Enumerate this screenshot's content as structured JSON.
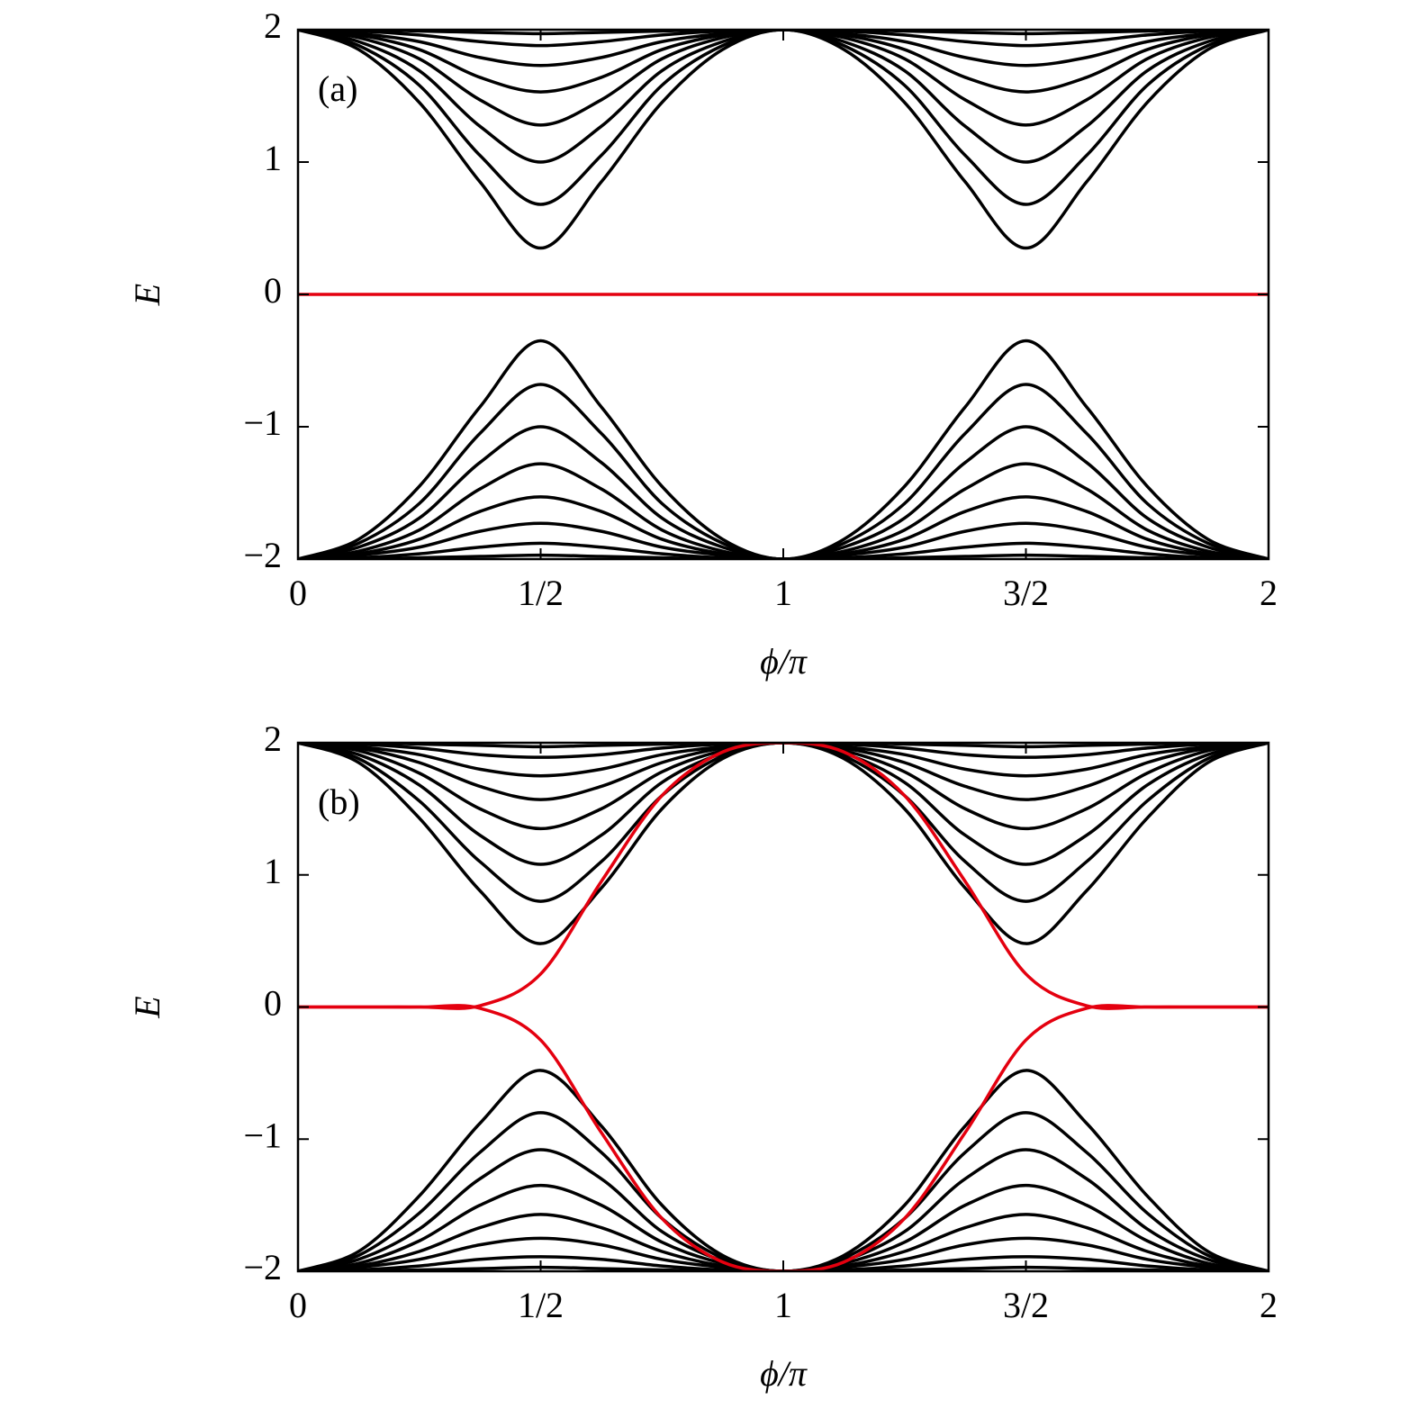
{
  "chart_data": [
    {
      "type": "line",
      "annotation": "(a)",
      "xlabel": "ϕ/π",
      "ylabel": "E",
      "xlim": [
        0,
        2
      ],
      "ylim": [
        -2,
        2
      ],
      "xticks": [
        0,
        {
          "value": 0.5,
          "label": "1/2"
        },
        1,
        {
          "value": 1.5,
          "label": "3/2"
        },
        2
      ],
      "yticks": [
        {
          "value": -2,
          "label": "−2"
        },
        {
          "value": -1,
          "label": "−1"
        },
        0,
        1,
        2
      ],
      "x": [
        0,
        0.125,
        0.25,
        0.375,
        0.5,
        0.625,
        0.75,
        0.875,
        1,
        1.125,
        1.25,
        1.375,
        1.5,
        1.625,
        1.75,
        1.875,
        2
      ],
      "series": [
        {
          "color": "#000000",
          "values": [
            2,
            1.85,
            1.45,
            0.85,
            0.35,
            0.85,
            1.45,
            1.85,
            2,
            1.85,
            1.45,
            0.85,
            0.35,
            0.85,
            1.45,
            1.85,
            2
          ]
        },
        {
          "color": "#000000",
          "values": [
            2,
            1.88,
            1.58,
            1.05,
            0.68,
            1.05,
            1.58,
            1.88,
            2,
            1.88,
            1.58,
            1.05,
            0.68,
            1.05,
            1.58,
            1.88,
            2
          ]
        },
        {
          "color": "#000000",
          "values": [
            2,
            1.91,
            1.69,
            1.27,
            1,
            1.27,
            1.69,
            1.91,
            2,
            1.91,
            1.69,
            1.27,
            1,
            1.27,
            1.69,
            1.91,
            2
          ]
        },
        {
          "color": "#000000",
          "values": [
            2,
            1.94,
            1.78,
            1.47,
            1.28,
            1.47,
            1.78,
            1.94,
            2,
            1.94,
            1.78,
            1.47,
            1.28,
            1.47,
            1.78,
            1.94,
            2
          ]
        },
        {
          "color": "#000000",
          "values": [
            2,
            1.96,
            1.85,
            1.64,
            1.53,
            1.64,
            1.85,
            1.96,
            2,
            1.96,
            1.85,
            1.64,
            1.53,
            1.64,
            1.85,
            1.96,
            2
          ]
        },
        {
          "color": "#000000",
          "values": [
            2,
            1.97,
            1.91,
            1.79,
            1.73,
            1.79,
            1.91,
            1.97,
            2,
            1.97,
            1.91,
            1.79,
            1.73,
            1.79,
            1.91,
            1.97,
            2
          ]
        },
        {
          "color": "#000000",
          "values": [
            2,
            1.99,
            1.96,
            1.91,
            1.88,
            1.91,
            1.96,
            1.99,
            2,
            1.99,
            1.96,
            1.91,
            1.88,
            1.91,
            1.96,
            1.99,
            2
          ]
        },
        {
          "color": "#000000",
          "values": [
            2,
            2,
            1.99,
            1.98,
            1.97,
            1.98,
            1.99,
            2,
            2,
            2,
            1.99,
            1.98,
            1.97,
            1.98,
            1.99,
            2,
            2
          ]
        },
        {
          "color": "#000000",
          "values": [
            -2,
            -1.85,
            -1.45,
            -0.85,
            -0.35,
            -0.85,
            -1.45,
            -1.85,
            -2,
            -1.85,
            -1.45,
            -0.85,
            -0.35,
            -0.85,
            -1.45,
            -1.85,
            -2
          ]
        },
        {
          "color": "#000000",
          "values": [
            -2,
            -1.88,
            -1.58,
            -1.05,
            -0.68,
            -1.05,
            -1.58,
            -1.88,
            -2,
            -1.88,
            -1.58,
            -1.05,
            -0.68,
            -1.05,
            -1.58,
            -1.88,
            -2
          ]
        },
        {
          "color": "#000000",
          "values": [
            -2,
            -1.91,
            -1.69,
            -1.27,
            -1,
            -1.27,
            -1.69,
            -1.91,
            -2,
            -1.91,
            -1.69,
            -1.27,
            -1,
            -1.27,
            -1.69,
            -1.91,
            -2
          ]
        },
        {
          "color": "#000000",
          "values": [
            -2,
            -1.94,
            -1.78,
            -1.47,
            -1.28,
            -1.47,
            -1.78,
            -1.94,
            -2,
            -1.94,
            -1.78,
            -1.47,
            -1.28,
            -1.47,
            -1.78,
            -1.94,
            -2
          ]
        },
        {
          "color": "#000000",
          "values": [
            -2,
            -1.96,
            -1.85,
            -1.64,
            -1.53,
            -1.64,
            -1.85,
            -1.96,
            -2,
            -1.96,
            -1.85,
            -1.64,
            -1.53,
            -1.64,
            -1.85,
            -1.96,
            -2
          ]
        },
        {
          "color": "#000000",
          "values": [
            -2,
            -1.97,
            -1.91,
            -1.79,
            -1.73,
            -1.79,
            -1.91,
            -1.97,
            -2,
            -1.97,
            -1.91,
            -1.79,
            -1.73,
            -1.79,
            -1.91,
            -1.97,
            -2
          ]
        },
        {
          "color": "#000000",
          "values": [
            -2,
            -1.99,
            -1.96,
            -1.91,
            -1.88,
            -1.91,
            -1.96,
            -1.99,
            -2,
            -1.99,
            -1.96,
            -1.91,
            -1.88,
            -1.91,
            -1.96,
            -1.99,
            -2
          ]
        },
        {
          "color": "#000000",
          "values": [
            -2,
            -2,
            -1.99,
            -1.98,
            -1.97,
            -1.98,
            -1.99,
            -2,
            -2,
            -2,
            -1.99,
            -1.98,
            -1.97,
            -1.98,
            -1.99,
            -2,
            -2
          ]
        },
        {
          "color": "#e4000f",
          "values": [
            0,
            0,
            0,
            0,
            0,
            0,
            0,
            0,
            0,
            0,
            0,
            0,
            0,
            0,
            0,
            0,
            0
          ]
        }
      ]
    },
    {
      "type": "line",
      "annotation": "(b)",
      "xlabel": "ϕ/π",
      "ylabel": "E",
      "xlim": [
        0,
        2
      ],
      "ylim": [
        -2,
        2
      ],
      "xticks": [
        0,
        {
          "value": 0.5,
          "label": "1/2"
        },
        1,
        {
          "value": 1.5,
          "label": "3/2"
        },
        2
      ],
      "yticks": [
        {
          "value": -2,
          "label": "−2"
        },
        {
          "value": -1,
          "label": "−1"
        },
        0,
        1,
        2
      ],
      "x": [
        0,
        0.125,
        0.25,
        0.375,
        0.5,
        0.625,
        0.75,
        0.875,
        1,
        1.125,
        1.25,
        1.375,
        1.5,
        1.625,
        1.75,
        1.875,
        2
      ],
      "series": [
        {
          "color": "#000000",
          "values": [
            2,
            1.85,
            1.43,
            0.88,
            0.48,
            0.9,
            1.5,
            1.88,
            2,
            1.88,
            1.5,
            0.9,
            0.48,
            0.88,
            1.43,
            1.85,
            2
          ]
        },
        {
          "color": "#000000",
          "values": [
            2,
            1.88,
            1.56,
            1.1,
            0.8,
            1.1,
            1.6,
            1.9,
            2,
            1.9,
            1.6,
            1.1,
            0.8,
            1.1,
            1.56,
            1.88,
            2
          ]
        },
        {
          "color": "#000000",
          "values": [
            2,
            1.91,
            1.68,
            1.3,
            1.08,
            1.3,
            1.7,
            1.92,
            2,
            1.92,
            1.7,
            1.3,
            1.08,
            1.3,
            1.68,
            1.91,
            2
          ]
        },
        {
          "color": "#000000",
          "values": [
            2,
            1.94,
            1.77,
            1.5,
            1.35,
            1.5,
            1.78,
            1.94,
            2,
            1.94,
            1.78,
            1.5,
            1.35,
            1.5,
            1.77,
            1.94,
            2
          ]
        },
        {
          "color": "#000000",
          "values": [
            2,
            1.96,
            1.85,
            1.67,
            1.57,
            1.67,
            1.85,
            1.96,
            2,
            1.96,
            1.85,
            1.67,
            1.57,
            1.67,
            1.85,
            1.96,
            2
          ]
        },
        {
          "color": "#000000",
          "values": [
            2,
            1.97,
            1.91,
            1.8,
            1.75,
            1.8,
            1.91,
            1.97,
            2,
            1.97,
            1.91,
            1.8,
            1.75,
            1.8,
            1.91,
            1.97,
            2
          ]
        },
        {
          "color": "#000000",
          "values": [
            2,
            1.99,
            1.96,
            1.91,
            1.89,
            1.91,
            1.96,
            1.99,
            2,
            1.99,
            1.96,
            1.91,
            1.89,
            1.91,
            1.96,
            1.99,
            2
          ]
        },
        {
          "color": "#000000",
          "values": [
            2,
            2,
            1.99,
            1.98,
            1.97,
            1.98,
            1.99,
            2,
            2,
            2,
            1.99,
            1.98,
            1.97,
            1.98,
            1.99,
            2,
            2
          ]
        },
        {
          "color": "#000000",
          "values": [
            -2,
            -1.85,
            -1.43,
            -0.88,
            -0.48,
            -0.9,
            -1.5,
            -1.88,
            -2,
            -1.88,
            -1.5,
            -0.9,
            -0.48,
            -0.88,
            -1.43,
            -1.85,
            -2
          ]
        },
        {
          "color": "#000000",
          "values": [
            -2,
            -1.88,
            -1.56,
            -1.1,
            -0.8,
            -1.1,
            -1.6,
            -1.9,
            -2,
            -1.9,
            -1.6,
            -1.1,
            -0.8,
            -1.1,
            -1.56,
            -1.88,
            -2
          ]
        },
        {
          "color": "#000000",
          "values": [
            -2,
            -1.91,
            -1.68,
            -1.3,
            -1.08,
            -1.3,
            -1.7,
            -1.92,
            -2,
            -1.92,
            -1.7,
            -1.3,
            -1.08,
            -1.3,
            -1.68,
            -1.91,
            -2
          ]
        },
        {
          "color": "#000000",
          "values": [
            -2,
            -1.94,
            -1.77,
            -1.5,
            -1.35,
            -1.5,
            -1.78,
            -1.94,
            -2,
            -1.94,
            -1.78,
            -1.5,
            -1.35,
            -1.5,
            -1.77,
            -1.94,
            -2
          ]
        },
        {
          "color": "#000000",
          "values": [
            -2,
            -1.96,
            -1.85,
            -1.67,
            -1.57,
            -1.67,
            -1.85,
            -1.96,
            -2,
            -1.96,
            -1.85,
            -1.67,
            -1.57,
            -1.67,
            -1.85,
            -1.96,
            -2
          ]
        },
        {
          "color": "#000000",
          "values": [
            -2,
            -1.97,
            -1.91,
            -1.8,
            -1.75,
            -1.8,
            -1.91,
            -1.97,
            -2,
            -1.97,
            -1.91,
            -1.8,
            -1.75,
            -1.8,
            -1.91,
            -1.97,
            -2
          ]
        },
        {
          "color": "#000000",
          "values": [
            -2,
            -1.99,
            -1.96,
            -1.91,
            -1.89,
            -1.91,
            -1.96,
            -1.99,
            -2,
            -1.99,
            -1.96,
            -1.91,
            -1.89,
            -1.91,
            -1.96,
            -1.99,
            -2
          ]
        },
        {
          "color": "#000000",
          "values": [
            -2,
            -2,
            -1.99,
            -1.98,
            -1.97,
            -1.98,
            -1.99,
            -2,
            -2,
            -2,
            -1.99,
            -1.98,
            -1.97,
            -1.98,
            -1.99,
            -2,
            -2
          ]
        },
        {
          "color": "#e4000f",
          "values": [
            0,
            0,
            0,
            0.01,
            0.25,
            0.95,
            1.6,
            1.93,
            2,
            1.93,
            1.6,
            0.95,
            0.25,
            0.01,
            0,
            0,
            0
          ]
        },
        {
          "color": "#e4000f",
          "values": [
            0,
            0,
            0,
            -0.01,
            -0.25,
            -0.95,
            -1.6,
            -1.93,
            -2,
            -1.93,
            -1.6,
            -0.95,
            -0.25,
            -0.01,
            0,
            0,
            0
          ]
        }
      ]
    }
  ]
}
